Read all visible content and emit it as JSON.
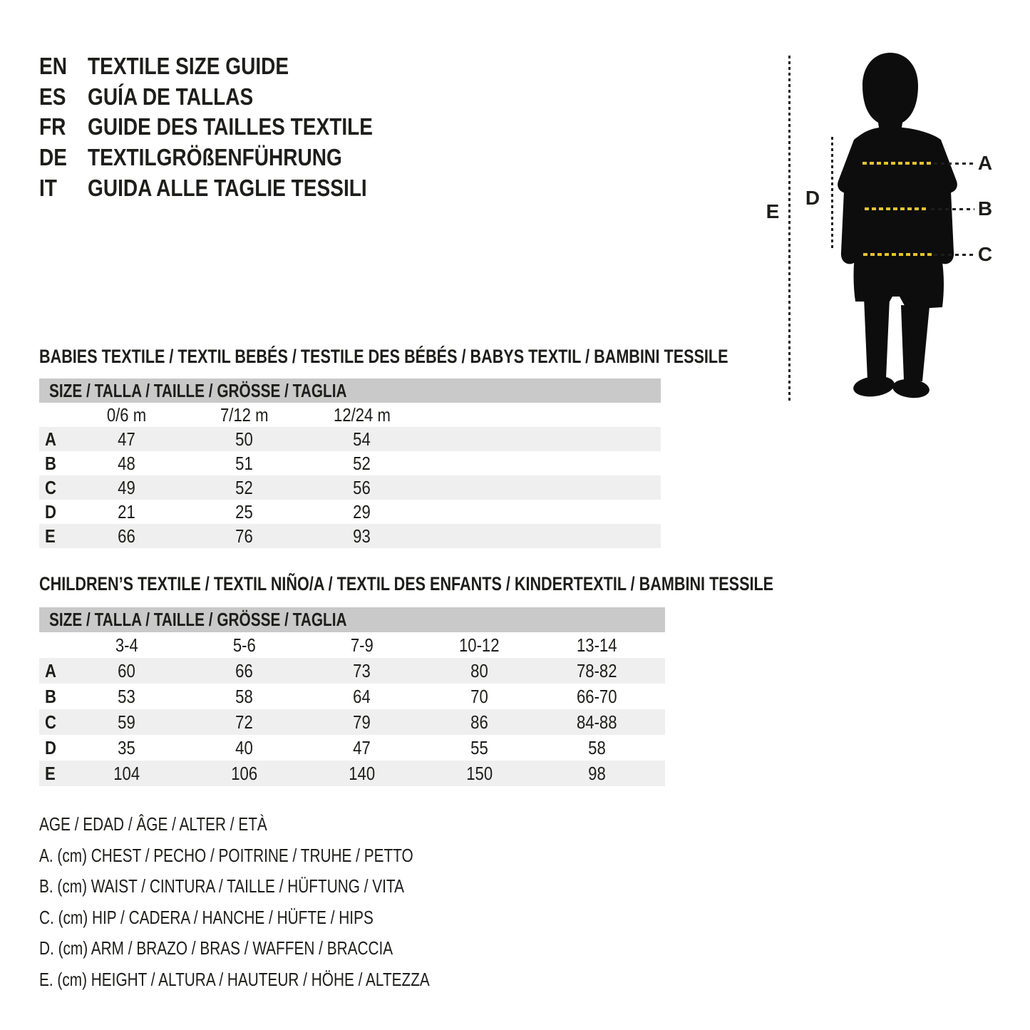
{
  "lang": {
    "items": [
      {
        "code": "EN",
        "label": "TEXTILE SIZE GUIDE"
      },
      {
        "code": "ES",
        "label": "GUÍA DE TALLAS"
      },
      {
        "code": "FR",
        "label": "GUIDE DES TAILLES TEXTILE"
      },
      {
        "code": "DE",
        "label": "TEXTILGRÖßENFÜHRUNG"
      },
      {
        "code": "IT",
        "label": "GUIDA ALLE TAGLIE TESSILI"
      }
    ]
  },
  "figure": {
    "label_a": "A",
    "label_b": "B",
    "label_c": "C",
    "label_d": "D",
    "label_e": "E"
  },
  "babies_table": {
    "heading": "BABIES TEXTILE / TEXTIL BEBÉS / TESTILE DES BÉBÉS / BABYS TEXTIL / BAMBINI TESSILE",
    "size_header": "SIZE / TALLA / TAILLE / GRÖSSE / TAGLIA",
    "columns": [
      "0/6 m",
      "7/12 m",
      "12/24 m"
    ],
    "rows": [
      {
        "label": "A",
        "values": [
          "47",
          "50",
          "54"
        ]
      },
      {
        "label": "B",
        "values": [
          "48",
          "51",
          "52"
        ]
      },
      {
        "label": "C",
        "values": [
          "49",
          "52",
          "56"
        ]
      },
      {
        "label": "D",
        "values": [
          "21",
          "25",
          "29"
        ]
      },
      {
        "label": "E",
        "values": [
          "66",
          "76",
          "93"
        ]
      }
    ]
  },
  "children_table": {
    "heading": "CHILDREN’S TEXTILE / TEXTIL NIÑO/A / TEXTIL DES ENFANTS / KINDERTEXTIL / BAMBINI TESSILE",
    "size_header": "SIZE / TALLA / TAILLE / GRÖSSE / TAGLIA",
    "columns": [
      "3-4",
      "5-6",
      "7-9",
      "10-12",
      "13-14"
    ],
    "rows": [
      {
        "label": "A",
        "values": [
          "60",
          "66",
          "73",
          "80",
          "78-82"
        ]
      },
      {
        "label": "B",
        "values": [
          "53",
          "58",
          "64",
          "70",
          "66-70"
        ]
      },
      {
        "label": "C",
        "values": [
          "59",
          "72",
          "79",
          "86",
          "84-88"
        ]
      },
      {
        "label": "D",
        "values": [
          "35",
          "40",
          "47",
          "55",
          "58"
        ]
      },
      {
        "label": "E",
        "values": [
          "104",
          "106",
          "140",
          "150",
          "98"
        ]
      }
    ]
  },
  "legend": {
    "lines": [
      "AGE / EDAD / ÂGE / ALTER / ETÀ",
      "A. (cm) CHEST / PECHO / POITRINE / TRUHE / PETTO",
      "B. (cm) WAIST / CINTURA / TAILLE / HÜFTUNG / VITA",
      "C. (cm) HIP / CADERA / HANCHE / HÜFTE / HIPS",
      "D. (cm) ARM / BRAZO / BRAS / WAFFEN / BRACCIA",
      "E. (cm) HEIGHT / ALTURA / HAUTEUR / HÖHE / ALTEZZA"
    ]
  },
  "colors": {
    "text_ink": "#1d1d1b",
    "silhouette": "#0d0d0d",
    "accent_yellow": "#e3c331",
    "table_header_bg": "#c9c9c9",
    "table_alt_row_bg": "#efefef"
  }
}
